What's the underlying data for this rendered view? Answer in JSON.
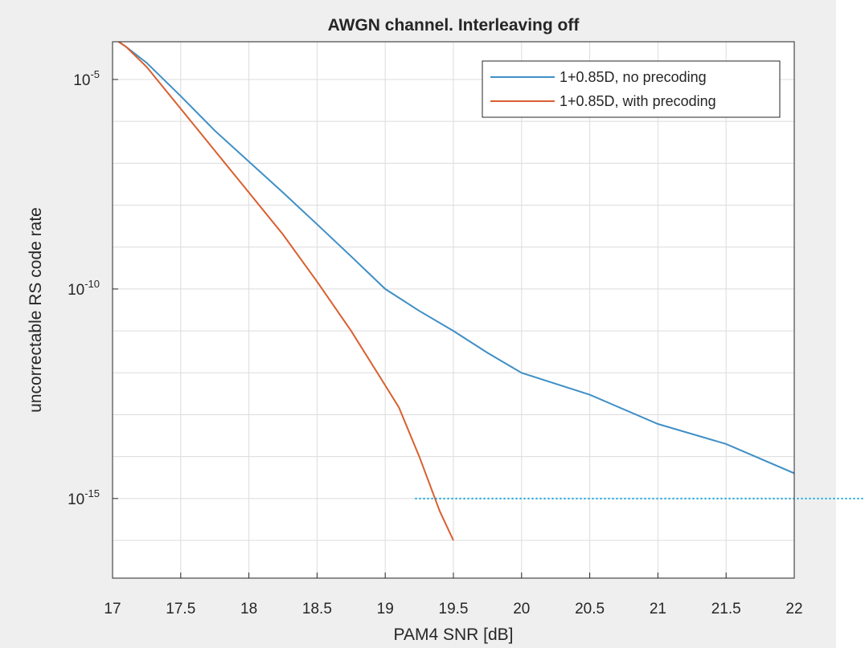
{
  "chart_data": {
    "type": "line",
    "title": "AWGN channel. Interleaving off",
    "xlabel": "PAM4 SNR [dB]",
    "ylabel": "uncorrectable RS code rate",
    "xlim": [
      17,
      22
    ],
    "ylim_log10": [
      -16.9,
      -4.1
    ],
    "yscale": "log",
    "grid": true,
    "legend_position": "top-right",
    "x_ticks": [
      "17",
      "17.5",
      "18",
      "18.5",
      "19",
      "19.5",
      "20",
      "20.5",
      "21",
      "21.5",
      "22"
    ],
    "y_ticks": [
      {
        "base": "10",
        "exp": "-5"
      },
      {
        "base": "10",
        "exp": "-10"
      },
      {
        "base": "10",
        "exp": "-15"
      }
    ],
    "series": [
      {
        "name": "1+0.85D, no precoding",
        "color": "#3f8fc6",
        "x": [
          17.0,
          17.1,
          17.25,
          17.5,
          17.75,
          18.0,
          18.25,
          18.5,
          18.75,
          19.0,
          19.25,
          19.5,
          19.75,
          20.0,
          20.5,
          21.0,
          21.5,
          22.0
        ],
        "y": [
          "1e-4",
          "6e-5",
          "2.5e-5",
          "4e-6",
          "6e-7",
          "1.1e-7",
          "2e-8",
          "3.5e-9",
          "6e-10",
          "1e-10",
          "3e-11",
          "1e-11",
          "3e-12",
          "1e-12",
          "3e-13",
          "6e-14",
          "2e-14",
          "4e-15"
        ]
      },
      {
        "name": "1+0.85D, with precoding",
        "color": "#d95f30",
        "x": [
          17.0,
          17.1,
          17.25,
          17.5,
          17.75,
          18.0,
          18.25,
          18.5,
          18.75,
          19.0,
          19.1,
          19.25,
          19.4,
          19.5
        ],
        "y": [
          "1e-4",
          "6e-5",
          "2e-5",
          "2e-6",
          "2e-7",
          "2e-8",
          "2e-9",
          "1.5e-10",
          "1e-11",
          "5e-13",
          "1.5e-13",
          "1e-14",
          "5e-16",
          "1e-16"
        ]
      }
    ],
    "annotations": [
      {
        "type": "dotted-horizontal-line",
        "color": "#00a3e0",
        "x_start": 19.22,
        "y": "1e-15"
      }
    ]
  }
}
